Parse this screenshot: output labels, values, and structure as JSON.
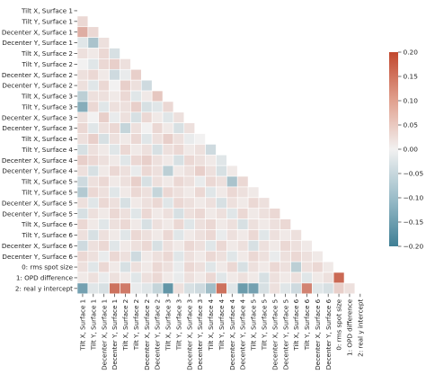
{
  "chart_data": {
    "type": "heatmap",
    "title": "",
    "labels": [
      "Tilt X, Surface 1",
      "Tilt Y, Surface 1",
      "Decenter X, Surface 1",
      "Decenter Y, Surface 1",
      "Tilt X, Surface 2",
      "Tilt Y, Surface 2",
      "Decenter X, Surface 2",
      "Decenter Y, Surface 2",
      "Tilt X, Surface 3",
      "Tilt Y, Surface 3",
      "Decenter X, Surface 3",
      "Decenter Y, Surface 3",
      "Tilt X, Surface 4",
      "Tilt Y, Surface 4",
      "Decenter X, Surface 4",
      "Decenter Y, Surface 4",
      "Tilt X, Surface 5",
      "Tilt Y, Surface 5",
      "Decenter X, Surface 5",
      "Decenter Y, Surface 5",
      "Tilt X, Surface 6",
      "Tilt Y, Surface 6",
      "Decenter X, Surface 6",
      "Decenter Y, Surface 6",
      "0: rms spot size",
      "1: OPD difference",
      "2: real y intercept"
    ],
    "colorbar": {
      "min": -0.2,
      "max": 0.2,
      "ticks": [
        "0.20",
        "0.15",
        "0.10",
        "0.05",
        "0.00",
        "−0.05",
        "−0.10",
        "−0.15",
        "−0.20"
      ],
      "tick_values": [
        0.2,
        0.15,
        0.1,
        0.05,
        0.0,
        -0.05,
        -0.1,
        -0.15,
        -0.2
      ]
    },
    "mask": "upper-triangle-including-diagonal",
    "colors": {
      "negative": "#3f7f95",
      "neutral": "#f2f1f1",
      "positive": "#c1472d"
    },
    "values": [
      [],
      [
        0.03
      ],
      [
        0.08,
        0.03
      ],
      [
        -0.02,
        -0.08,
        0.02
      ],
      [
        0.02,
        0.01,
        0.03,
        -0.03
      ],
      [
        0.0,
        -0.02,
        0.03,
        0.04,
        0.02
      ],
      [
        0.02,
        0.03,
        0.01,
        -0.04,
        -0.01,
        0.04
      ],
      [
        0.02,
        -0.02,
        0.03,
        0.0,
        0.04,
        0.02,
        -0.04
      ],
      [
        -0.06,
        0.02,
        0.02,
        0.01,
        0.03,
        -0.02,
        0.01,
        0.05
      ],
      [
        -0.12,
        0.03,
        -0.02,
        0.02,
        0.02,
        0.04,
        -0.03,
        -0.02,
        0.03
      ],
      [
        0.02,
        0.0,
        0.04,
        -0.01,
        0.02,
        -0.03,
        0.03,
        0.01,
        -0.02,
        0.02
      ],
      [
        0.03,
        -0.02,
        0.02,
        0.03,
        -0.05,
        0.02,
        0.0,
        0.03,
        0.01,
        -0.03,
        0.02
      ],
      [
        0.02,
        0.04,
        -0.03,
        0.02,
        0.01,
        0.03,
        -0.02,
        0.02,
        0.04,
        0.02,
        -0.01,
        0.0
      ],
      [
        -0.03,
        0.02,
        0.01,
        -0.02,
        0.03,
        0.01,
        0.02,
        -0.03,
        0.02,
        0.03,
        0.01,
        0.02,
        -0.04
      ],
      [
        0.04,
        0.03,
        0.02,
        0.01,
        -0.02,
        0.03,
        0.04,
        0.02,
        0.01,
        -0.03,
        0.03,
        0.02,
        0.01,
        -0.02
      ],
      [
        0.02,
        -0.03,
        0.01,
        0.03,
        0.02,
        -0.01,
        0.03,
        0.02,
        -0.06,
        0.01,
        0.02,
        0.04,
        0.02,
        -0.03,
        0.01
      ],
      [
        -0.04,
        0.02,
        0.03,
        0.01,
        0.02,
        0.04,
        -0.03,
        0.02,
        0.01,
        0.03,
        0.02,
        -0.01,
        0.03,
        0.02,
        -0.08,
        0.03
      ],
      [
        -0.07,
        0.03,
        0.02,
        -0.02,
        0.01,
        0.03,
        0.02,
        -0.05,
        0.03,
        0.02,
        0.01,
        0.03,
        -0.02,
        0.01,
        0.03,
        0.02,
        0.01
      ],
      [
        0.02,
        -0.02,
        0.03,
        0.02,
        -0.03,
        0.01,
        0.02,
        0.03,
        -0.02,
        0.03,
        0.02,
        0.01,
        0.02,
        -0.03,
        0.02,
        0.01,
        0.03,
        0.02
      ],
      [
        -0.03,
        0.02,
        0.01,
        0.03,
        0.02,
        -0.02,
        0.03,
        0.01,
        0.02,
        -0.03,
        0.02,
        0.03,
        0.01,
        0.02,
        -0.02,
        0.03,
        0.01,
        0.02,
        0.03
      ],
      [
        0.03,
        0.01,
        -0.02,
        0.02,
        0.03,
        0.01,
        -0.03,
        0.02,
        0.01,
        0.03,
        -0.02,
        0.02,
        0.03,
        0.01,
        0.02,
        -0.03,
        0.02,
        0.01,
        0.02,
        0.03
      ],
      [
        0.02,
        -0.03,
        0.02,
        0.01,
        -0.02,
        0.03,
        0.02,
        0.01,
        0.03,
        -0.02,
        0.01,
        0.02,
        0.03,
        -0.01,
        0.02,
        0.01,
        0.03,
        -0.02,
        0.02,
        0.01,
        0.02
      ],
      [
        -0.04,
        0.02,
        0.03,
        -0.02,
        0.01,
        0.02,
        0.03,
        -0.03,
        0.02,
        0.01,
        0.03,
        0.02,
        -0.02,
        0.03,
        0.01,
        0.02,
        -0.03,
        0.02,
        0.01,
        0.03,
        0.02,
        0.01
      ],
      [
        0.03,
        0.02,
        -0.01,
        0.03,
        0.02,
        -0.04,
        0.01,
        0.02,
        0.03,
        -0.02,
        0.02,
        0.01,
        0.03,
        0.02,
        -0.02,
        0.01,
        0.03,
        0.02,
        -0.01,
        0.02,
        0.03,
        0.02,
        0.01
      ],
      [
        0.02,
        -0.02,
        0.03,
        0.01,
        -0.03,
        0.02,
        0.01,
        0.03,
        0.02,
        -0.01,
        0.03,
        0.02,
        -0.02,
        0.01,
        0.03,
        -0.03,
        0.02,
        0.01,
        0.03,
        0.02,
        -0.06,
        0.02,
        0.03,
        0.01
      ],
      [
        0.01,
        0.02,
        -0.01,
        0.02,
        0.01,
        -0.02,
        0.02,
        0.03,
        0.01,
        -0.01,
        0.02,
        0.01,
        0.03,
        -0.02,
        0.01,
        0.02,
        0.01,
        -0.03,
        0.02,
        0.01,
        0.02,
        -0.02,
        0.01,
        0.02,
        0.16
      ],
      [
        -0.14,
        -0.02,
        -0.03,
        0.15,
        0.14,
        -0.01,
        -0.02,
        -0.05,
        -0.16,
        0.02,
        -0.03,
        -0.04,
        -0.09,
        0.15,
        -0.02,
        -0.15,
        -0.14,
        -0.03,
        0.02,
        -0.02,
        -0.04,
        0.13,
        -0.02,
        -0.03,
        0.04,
        0.02
      ]
    ]
  }
}
